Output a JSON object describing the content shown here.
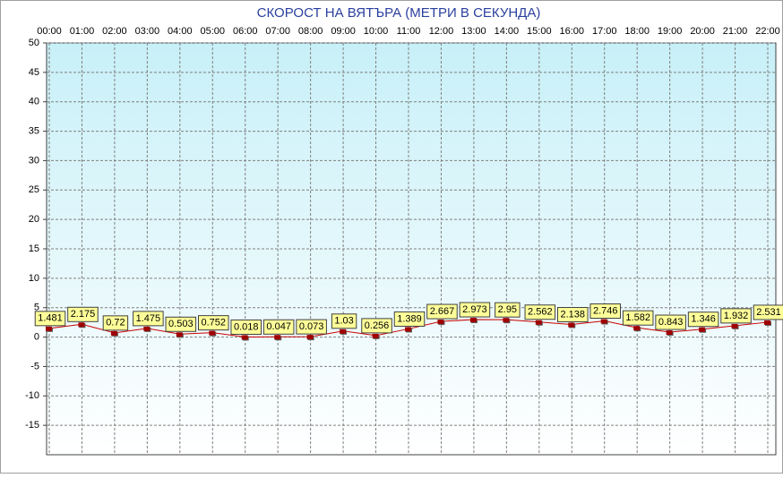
{
  "chart_data": {
    "type": "line",
    "title": "СКОРОСТ НА ВЯТЪРА (МЕТРИ В СЕКУНДА)",
    "categories": [
      "00:00",
      "01:00",
      "02:00",
      "03:00",
      "04:00",
      "05:00",
      "06:00",
      "07:00",
      "08:00",
      "09:00",
      "10:00",
      "11:00",
      "12:00",
      "13:00",
      "14:00",
      "15:00",
      "16:00",
      "17:00",
      "18:00",
      "19:00",
      "20:00",
      "21:00",
      "22:00"
    ],
    "values": [
      1.481,
      2.175,
      0.72,
      1.475,
      0.503,
      0.752,
      0.018,
      0.047,
      0.073,
      1.03,
      0.256,
      1.389,
      2.667,
      2.973,
      2.95,
      2.562,
      2.138,
      2.746,
      1.582,
      0.843,
      1.346,
      1.932,
      2.531
    ],
    "color": "#cc0000",
    "ylim": [
      -20,
      50
    ],
    "yticks": [
      50,
      45,
      40,
      35,
      30,
      25,
      20,
      15,
      10,
      5,
      0,
      -5,
      -10,
      -15
    ],
    "grid": true
  }
}
